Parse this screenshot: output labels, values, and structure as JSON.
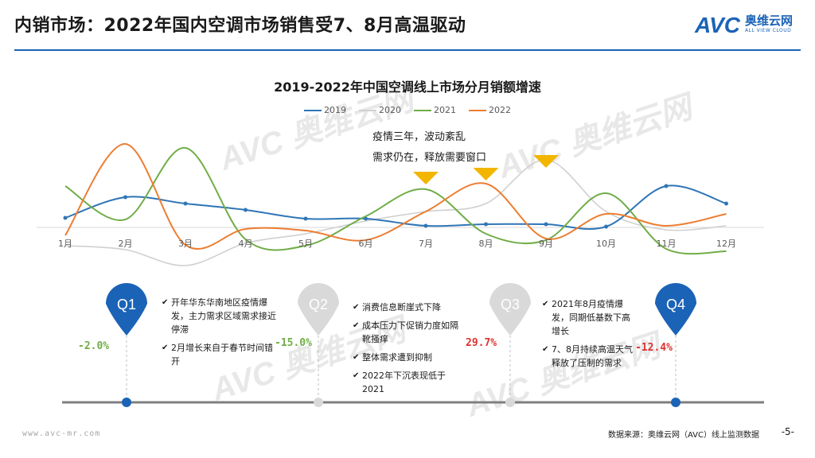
{
  "header": {
    "title": "内销市场：2022年国内空调市场销售受7、8月高温驱动"
  },
  "logo": {
    "avc": "AVC",
    "cn": "奥维云网",
    "en": "ALL VIEW CLOUD"
  },
  "watermarks": [
    "AVC 奥维云网",
    "AVC 奥维云网",
    "AVC 奥维云网",
    "AVC 奥维云网"
  ],
  "annotation": {
    "line1": "疫情三年，波动紊乱",
    "line2": "需求仍在，释放需要窗口"
  },
  "colors": {
    "2019": "#2e75b6",
    "2020": "#d0d0d0",
    "2021": "#70ad47",
    "2022": "#ed7d31",
    "marker": "#1b63b7",
    "marker_faded": "#d9d9d9",
    "triangle": "#f2b600",
    "positive": "#e03030",
    "negative": "#70ad47"
  },
  "chart_data": {
    "type": "line",
    "title": "2019-2022年中国空调线上市场分月销额增速",
    "categories": [
      "1月",
      "2月",
      "3月",
      "4月",
      "5月",
      "6月",
      "7月",
      "8月",
      "9月",
      "10月",
      "11月",
      "12月"
    ],
    "series": [
      {
        "name": "2019",
        "values": [
          12,
          38,
          30,
          22,
          11,
          11,
          2,
          4,
          4,
          1,
          52,
          30
        ]
      },
      {
        "name": "2020",
        "values": [
          -23,
          -28,
          -48,
          -20,
          -8,
          8,
          20,
          30,
          85,
          20,
          -3,
          2
        ]
      },
      {
        "name": "2021",
        "values": [
          52,
          10,
          100,
          -15,
          -23,
          14,
          48,
          -8,
          -16,
          43,
          -27,
          -30
        ]
      },
      {
        "name": "2022",
        "values": [
          -10,
          105,
          -22,
          -2,
          -4,
          -16,
          20,
          55,
          -14,
          17,
          2,
          17
        ]
      }
    ],
    "ylim": [
      -60,
      120
    ],
    "zero_line": true,
    "annotation_months": [
      "7月",
      "8月",
      "9月"
    ]
  },
  "timeline": {
    "quarters": [
      {
        "label": "Q1",
        "active": true,
        "growth": "-2.0%",
        "bullets": [
          "开年华东华南地区疫情爆发，主力需求区域需求接近停滞",
          "2月增长来自于春节时间错开"
        ]
      },
      {
        "label": "Q2",
        "active": false,
        "growth": "-15.0%",
        "bullets": [
          "消费信息断崖式下降",
          "成本压力下促销力度如隔靴搔痒",
          "整体需求遭到抑制",
          "2022年下沉表现低于2021"
        ]
      },
      {
        "label": "Q3",
        "active": false,
        "growth": "29.7%",
        "bullets": [
          "2021年8月疫情爆发，同期低基数下高增长",
          "7、8月持续高温天气释放了压制的需求"
        ]
      },
      {
        "label": "Q4",
        "active": true,
        "growth": "-12.4%",
        "bullets": []
      }
    ]
  },
  "footer": {
    "url": "www.avc-mr.com",
    "source": "数据来源：奥维云网（AVC）线上监测数据",
    "page": "-5-"
  }
}
